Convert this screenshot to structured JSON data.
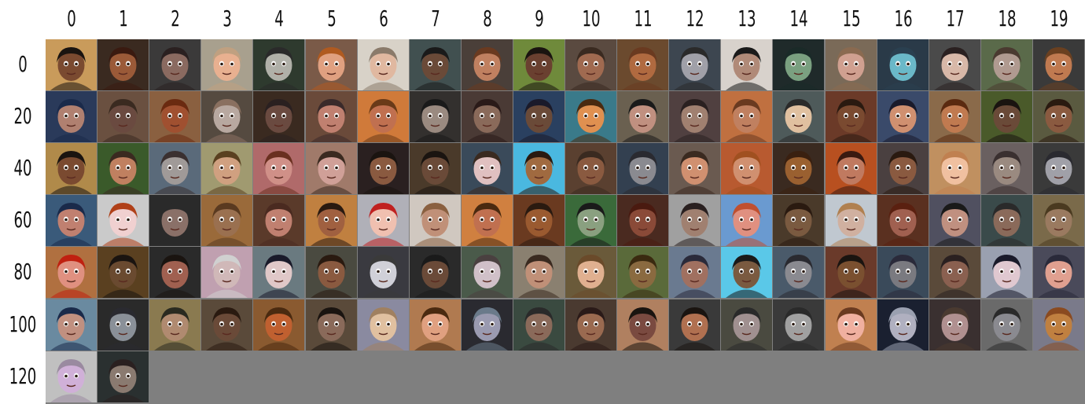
{
  "column_labels": [
    "0",
    "1",
    "2",
    "3",
    "4",
    "5",
    "6",
    "7",
    "8",
    "9",
    "10",
    "11",
    "12",
    "13",
    "14",
    "15",
    "16",
    "17",
    "18",
    "19"
  ],
  "row_labels": [
    "0",
    "20",
    "40",
    "60",
    "80",
    "100",
    "120"
  ],
  "grid": {
    "columns": 20,
    "total_images": 122,
    "empty_fill": "#7f7f7f"
  },
  "palettes": {
    "backgrounds": [
      "#c99b5b",
      "#3a2a20",
      "#3b3a3a",
      "#a8a08e",
      "#2e3a2e",
      "#7a5a48",
      "#d8d2c8",
      "#415050",
      "#4a3f39",
      "#6f8a3b",
      "#5a4a40",
      "#6b4a2e",
      "#3d4650",
      "#d8d2cc",
      "#1f2a2a",
      "#7a6a58",
      "#2a3a48",
      "#4a4a4a",
      "#5a6a4a",
      "#3a3a3a",
      "#2a3a5a",
      "#6a5040",
      "#8a6040",
      "#554a40",
      "#3a2a20",
      "#6a4a3a",
      "#d07a3a",
      "#33302e",
      "#4a3a35",
      "#2a4060",
      "#3a7a8a",
      "#6a6050",
      "#504040",
      "#c07040",
      "#4e5a5a",
      "#6b3a28",
      "#3a4a6a",
      "#8a6a4a",
      "#4a5a2a",
      "#5a5a40",
      "#b08a4a",
      "#3a5a2a",
      "#5a6a7a",
      "#a09a70",
      "#b06a6a",
      "#a07a6a",
      "#2a2020",
      "#4a3a2a",
      "#3a4a5a",
      "#4ab8e0",
      "#5a4030",
      "#334050",
      "#6a5a50",
      "#b85a30",
      "#3a2a20",
      "#b85020",
      "#4a4040",
      "#c09060",
      "#6a6060",
      "#3a3a3a",
      "#3a5a7a",
      "#cacaca",
      "#2a2a2a",
      "#9a6a3a",
      "#5a3a2a",
      "#c08040",
      "#b0b0b8",
      "#d0c8c0",
      "#d08040",
      "#6a3a20",
      "#3a6a3a",
      "#4a2a20",
      "#a0a0a0",
      "#6a9ad0",
      "#4a3a2a",
      "#c0c8d0",
      "#5a3020",
      "#505060",
      "#3a4a4a",
      "#7a6a4a",
      "#b07040",
      "#5a4020",
      "#2a2a2a",
      "#c0a0b0",
      "#6a7a80",
      "#4a4a40",
      "#3a3a40",
      "#2a2a2a",
      "#4a5a4a",
      "#8a8070",
      "#6a5a3a",
      "#5a6a3a",
      "#6a7a90",
      "#5ac8e8",
      "#4a5a6a",
      "#6a3a2a",
      "#3a4a5a",
      "#5a4a3a",
      "#9aa0b0",
      "#4a4a5a",
      "#6a8aa0",
      "#2a2a2a",
      "#8a7a50",
      "#5a4a3a",
      "#8a5a30",
      "#5a4a3a",
      "#8a8aa0",
      "#b07a50",
      "#2a2a30",
      "#3a4a40",
      "#4a3a30",
      "#b08060",
      "#3a3a3a",
      "#4a4a40",
      "#3a3a3a",
      "#c08050",
      "#1a2030",
      "#3a3030",
      "#6a6a6a",
      "#7a7a8a",
      "#c0c0c0",
      "#2a3030"
    ],
    "skins": [
      "#7a4a30",
      "#9a5a38",
      "#8a6a60",
      "#e8b090",
      "#b0b0a8",
      "#e0a080",
      "#e0b8a0",
      "#6a4a38",
      "#c08060",
      "#6a4030",
      "#a06a50",
      "#b06a40",
      "#a0a0a8",
      "#b08a78",
      "#7aa080",
      "#d0a090",
      "#6ab8c8",
      "#d8b8a8",
      "#b09a90",
      "#c07a50",
      "#b08070",
      "#6a4a40",
      "#a05030",
      "#b8a8a0",
      "#6a4a40",
      "#c08070",
      "#c07050",
      "#9a8a80",
      "#8a6a5a",
      "#6a4a38",
      "#e09050",
      "#c09080",
      "#a08070",
      "#c08060",
      "#e0c0a0",
      "#7a4a30",
      "#d09070",
      "#c07a50",
      "#6a4a38",
      "#8a5a40",
      "#7a4a30",
      "#c08060",
      "#a09a98",
      "#d0a080",
      "#d09088",
      "#d0a098",
      "#8a5a40",
      "#6a4a38",
      "#e0c0c0",
      "#a06a40",
      "#8a5a40",
      "#8a8a90",
      "#d09070",
      "#d09070",
      "#9a6030",
      "#c07a60",
      "#8a5a40",
      "#f0c0a0",
      "#9a8a80",
      "#a0a0a8",
      "#c08070",
      "#f0d0d0",
      "#8a7068",
      "#9a7050",
      "#c08070",
      "#a06040",
      "#f0c0b0",
      "#c09078",
      "#c07050",
      "#9a5a30",
      "#8aa080",
      "#8a4a38",
      "#a08070",
      "#e09080",
      "#7a5a40",
      "#d0b0a0",
      "#a06050",
      "#c09080",
      "#8a6a5a",
      "#9a7a60",
      "#e09080",
      "#6a4a30",
      "#a06050",
      "#d0b8b8",
      "#e0c8c8",
      "#8a5a40",
      "#d0d0d8",
      "#6a4a38",
      "#d0c0c8",
      "#c09078",
      "#e0b090",
      "#8a6a40",
      "#a07060",
      "#7a5a40",
      "#8a8a90",
      "#7a5030",
      "#7a7a80",
      "#8a6050",
      "#e0c8d0",
      "#e0a090",
      "#c09080",
      "#8a9098",
      "#b08a70",
      "#6a4a38",
      "#c06030",
      "#8a6a5a",
      "#e0c0a0",
      "#e0a080",
      "#9a9ab0",
      "#8a6a5a",
      "#9a6a50",
      "#7a4a40",
      "#b07050",
      "#a09090",
      "#a0a0a0",
      "#f0b0a0",
      "#b0b0c0",
      "#b09090",
      "#8a8a90",
      "#c08040",
      "#d0b0d8",
      "#8a7a70"
    ],
    "hair": [
      "#1a1410",
      "#3a1a10",
      "#2a2020",
      "#c0a080",
      "#2a2a2a",
      "#b05a20",
      "#8a7a6a",
      "#1a1a1a",
      "#6a3a20",
      "#1a1410",
      "#3a2a20",
      "#6a3a20",
      "#2a2a2a",
      "#1a1a1a",
      "#1a2a28",
      "#8a6a50",
      "#2a4050",
      "#2a2020",
      "#4a3a30",
      "#6a4020",
      "#1a2a4a",
      "#3a2a20",
      "#6a2a10",
      "#8a7060",
      "#2a2020",
      "#3a2a2a",
      "#6a3a18",
      "#1a1a1a",
      "#2a1a18",
      "#1a1a2a",
      "#4a2a10",
      "#1a1a1a",
      "#2a2020",
      "#6a3a20",
      "#2a2a2a",
      "#2a1a10",
      "#1a1a2a",
      "#5a2a10",
      "#1a1410",
      "#2a1a10",
      "#1a1410",
      "#3a2a20",
      "#3a3030",
      "#5a4020",
      "#6a3020",
      "#3a2a20",
      "#1a1410",
      "#1a1410",
      "#3a2a20",
      "#2a1a10",
      "#3a2a20",
      "#2a2a30",
      "#3a2a20",
      "#a05020",
      "#3a2010",
      "#3a1a10",
      "#2a1a10",
      "#c08050",
      "#3a3030",
      "#2a2a30",
      "#1a2a4a",
      "#b04018",
      "#2a2a2a",
      "#5a3a20",
      "#4a2a20",
      "#2a1a10",
      "#c02020",
      "#8a6040",
      "#4a2a10",
      "#2a1a10",
      "#1a1a1a",
      "#4a1a10",
      "#2a2020",
      "#c05030",
      "#2a1a10",
      "#b08050",
      "#5a2010",
      "#1a1a1a",
      "#2a2a2a",
      "#4a3a20",
      "#c02010",
      "#1a1410",
      "#1a1410",
      "#d0d0d0",
      "#1a1a2a",
      "#2a1a10",
      "#3a3a3a",
      "#1a1a1a",
      "#4a4040",
      "#3a2a20",
      "#6a4a2a",
      "#3a2a10",
      "#2a2a3a",
      "#1a1a1a",
      "#2a2a30",
      "#1a1410",
      "#2a2a3a",
      "#2a2020",
      "#1a1a2a",
      "#2a2a3a",
      "#1a2a4a",
      "#2a2a30",
      "#2a2a20",
      "#2a1a10",
      "#4a2a10",
      "#1a1410",
      "#a08060",
      "#4a2a10",
      "#6a7a8a",
      "#2a2a2a",
      "#2a1a18",
      "#1a1410",
      "#1a1410",
      "#2a2a2a",
      "#2a2a2a",
      "#6a3a20",
      "#9aa0b0",
      "#4a3a30",
      "#2a2a2a",
      "#8a4a20",
      "#9a8aa0",
      "#2a2020"
    ]
  }
}
